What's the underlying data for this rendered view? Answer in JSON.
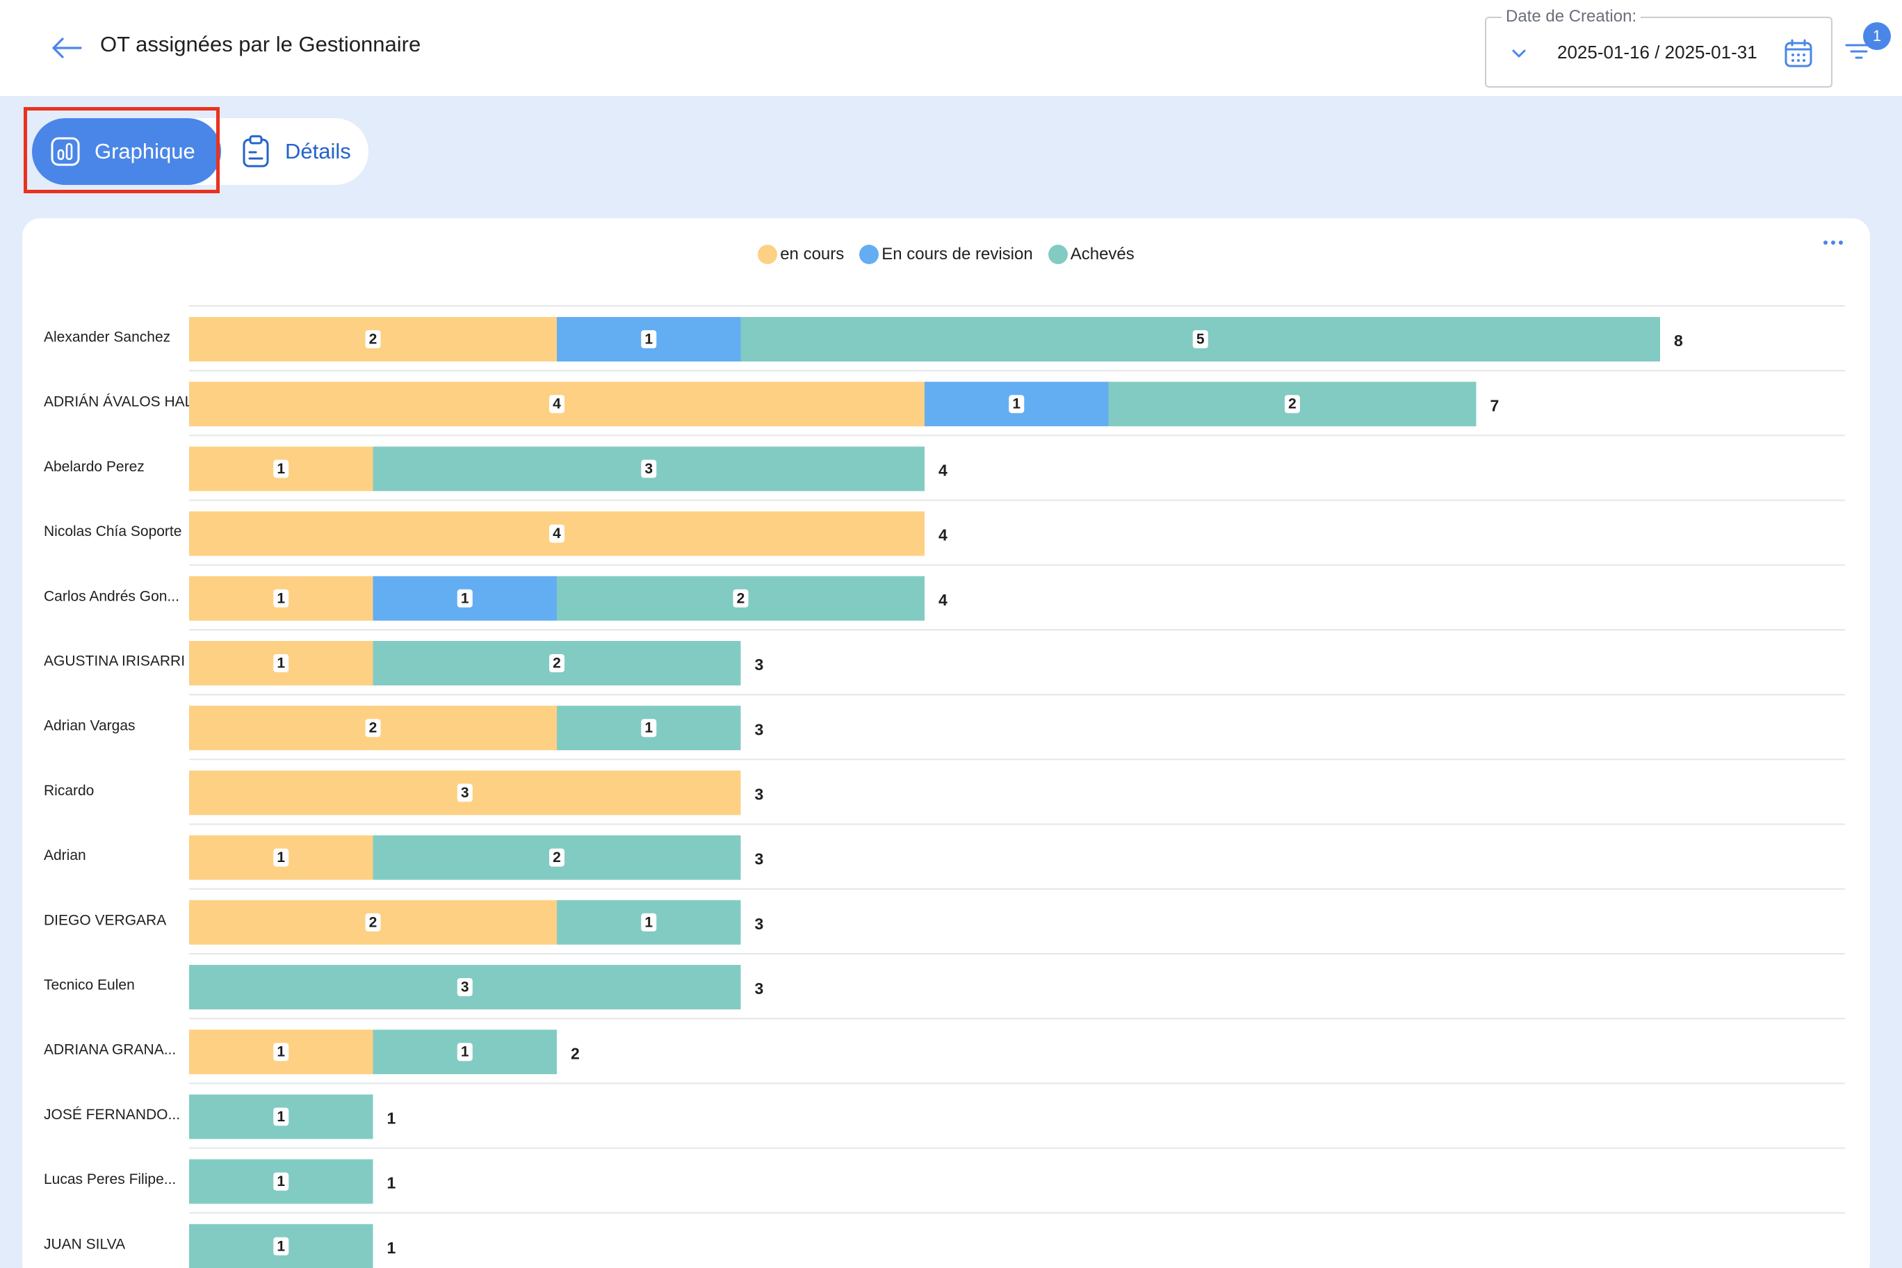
{
  "header": {
    "title": "OT assignées par le Gestionnaire",
    "back_icon": "arrow-left-icon",
    "date_filter": {
      "legend": "Date de Creation:",
      "value": "2025-01-16 / 2025-01-31",
      "calendar_icon": "calendar-icon",
      "chevron_icon": "chevron-down-icon"
    },
    "filter": {
      "icon": "filter-icon",
      "badge_count": "1"
    }
  },
  "tabs": [
    {
      "label": "Graphique",
      "icon": "bar-chart-icon",
      "active": true
    },
    {
      "label": "Détails",
      "icon": "clipboard-icon",
      "active": false
    }
  ],
  "chart_card": {
    "menu_icon": "more-horizontal-icon"
  },
  "colors": {
    "accent": "#4a86e8",
    "en_cours": "#fdd083",
    "en_revision": "#63aef2",
    "acheves": "#82cbc3",
    "highlight": "#e8321f"
  },
  "chart_data": {
    "type": "bar",
    "orientation": "horizontal",
    "stacked": true,
    "legend_position": "top-center",
    "grid": true,
    "categories": [
      "Alexander Sanchez",
      "ADRIÁN ÁVALOS HAL",
      "Abelardo Perez",
      "Nicolas Chía Soporte",
      "Carlos Andrés Gon...",
      "AGUSTINA IRISARRI",
      "Adrian Vargas",
      "Ricardo",
      "Adrian",
      "DIEGO VERGARA",
      "Tecnico Eulen",
      "ADRIANA GRANA...",
      "JOSÉ FERNANDO...",
      "Lucas Peres Filipe...",
      "JUAN SILVA"
    ],
    "series": [
      {
        "name": "en cours",
        "color": "#fdd083",
        "values": [
          2,
          4,
          1,
          4,
          1,
          1,
          2,
          3,
          1,
          2,
          0,
          1,
          0,
          0,
          0
        ]
      },
      {
        "name": "En cours de revision",
        "color": "#63aef2",
        "values": [
          1,
          1,
          0,
          0,
          1,
          0,
          0,
          0,
          0,
          0,
          0,
          0,
          0,
          0,
          0
        ]
      },
      {
        "name": "Achevés",
        "color": "#82cbc3",
        "values": [
          5,
          2,
          3,
          0,
          2,
          2,
          1,
          0,
          2,
          1,
          3,
          1,
          1,
          1,
          1
        ]
      }
    ],
    "totals": [
      8,
      7,
      4,
      4,
      4,
      3,
      3,
      3,
      3,
      3,
      3,
      2,
      1,
      1,
      1
    ],
    "xlim": [
      0,
      9
    ]
  }
}
